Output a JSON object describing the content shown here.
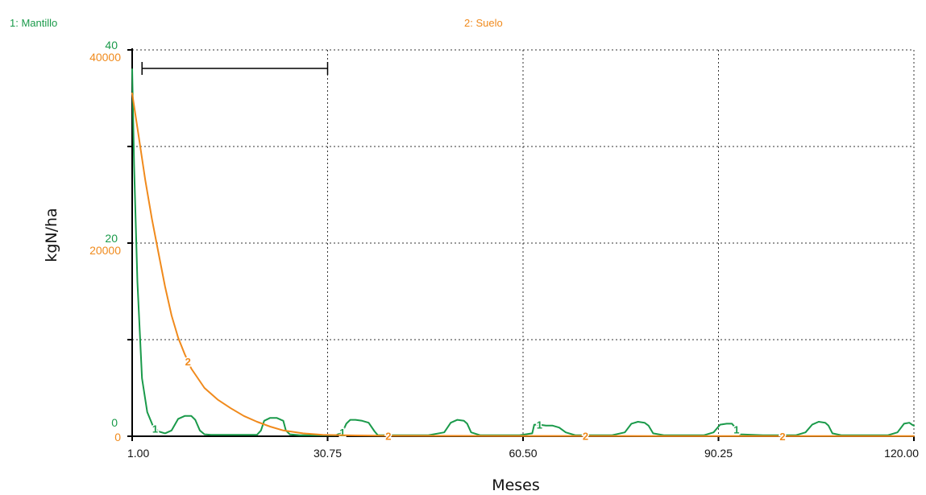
{
  "chart_data": {
    "type": "line",
    "title": "",
    "xlabel": "Meses",
    "ylabel": "kgN/ha",
    "xlim": [
      1.0,
      120.0
    ],
    "x_ticks": [
      "1.00",
      "30.75",
      "60.50",
      "90.25",
      "120.00"
    ],
    "grid": true,
    "legend": "top",
    "axes": {
      "left_outer": {
        "series": "Mantillo",
        "color": "#1a9a4a",
        "ylim": [
          0,
          40
        ],
        "ticks": [
          {
            "value": 40,
            "label": "40"
          },
          {
            "value": 20,
            "label": "20"
          },
          {
            "value": 0,
            "label": "0"
          }
        ]
      },
      "left_inner": {
        "series": "Suelo",
        "color": "#f08a1c",
        "ylim": [
          0,
          40000
        ],
        "ticks": [
          {
            "value": 40000,
            "label": "40000"
          },
          {
            "value": 20000,
            "label": "20000"
          },
          {
            "value": 0,
            "label": "0"
          }
        ]
      }
    },
    "legend_entries": [
      {
        "label": "1: Mantillo",
        "color": "#1a9a4a"
      },
      {
        "label": "2: Suelo",
        "color": "#f08a1c"
      }
    ],
    "range_bar": {
      "x_start": 2.5,
      "x_end": 30.75,
      "y": 38000
    },
    "series": [
      {
        "name": "Mantillo",
        "marker": "1",
        "color": "#1a9a4a",
        "axis": "left_outer",
        "x": [
          1.0,
          1.3,
          1.8,
          2.5,
          3.3,
          4.2,
          5.0,
          6.0,
          7.0,
          8.0,
          9.0,
          10.0,
          10.6,
          11.3,
          12.0,
          13.0,
          20.0,
          20.6,
          21.1,
          22.0,
          23.0,
          24.0,
          24.4,
          25.0,
          26.5,
          27.5,
          28.0,
          29.0,
          30.0,
          31.0,
          32.0,
          33.0,
          33.6,
          34.2,
          35.0,
          36.0,
          37.0,
          37.9,
          38.4,
          39.0,
          41.0,
          46.0,
          48.5,
          49.5,
          50.5,
          51.5,
          52.0,
          52.6,
          54.0,
          60.0,
          61.9,
          62.2,
          62.6,
          63.0,
          64.0,
          65.0,
          66.0,
          67.0,
          68.5,
          74.0,
          76.0,
          77.0,
          78.0,
          79.0,
          79.6,
          80.3,
          82.0,
          88.0,
          89.5,
          90.5,
          91.5,
          92.3,
          92.8,
          93.5,
          97.0,
          102.0,
          103.5,
          104.5,
          105.5,
          106.5,
          107.0,
          107.6,
          109.0,
          116.0,
          117.5,
          118.5,
          119.3,
          119.7,
          120.0
        ],
        "y": [
          38.0,
          28.0,
          16.0,
          6.0,
          2.5,
          1.0,
          0.5,
          0.3,
          0.6,
          1.8,
          2.1,
          2.1,
          1.7,
          0.6,
          0.2,
          0.15,
          0.15,
          0.6,
          1.6,
          1.9,
          1.9,
          1.6,
          0.6,
          0.2,
          0.1,
          0.1,
          0.1,
          0.1,
          0.1,
          0.1,
          0.1,
          0.4,
          1.3,
          1.7,
          1.7,
          1.6,
          1.4,
          0.5,
          0.1,
          0.1,
          0.1,
          0.1,
          0.4,
          1.4,
          1.7,
          1.6,
          1.3,
          0.4,
          0.1,
          0.1,
          0.3,
          1.2,
          1.2,
          1.2,
          1.1,
          1.1,
          0.9,
          0.4,
          0.1,
          0.1,
          0.4,
          1.3,
          1.5,
          1.4,
          1.1,
          0.3,
          0.1,
          0.1,
          0.4,
          1.2,
          1.3,
          1.3,
          0.9,
          0.2,
          0.1,
          0.1,
          0.4,
          1.2,
          1.5,
          1.4,
          1.1,
          0.3,
          0.1,
          0.1,
          0.4,
          1.3,
          1.4,
          1.2,
          1.1
        ]
      },
      {
        "name": "Suelo",
        "marker": "2",
        "color": "#f08a1c",
        "axis": "left_inner",
        "x": [
          1.0,
          2.0,
          3.0,
          4.0,
          5.0,
          6.0,
          7.0,
          8.0,
          9.0,
          10.0,
          12.0,
          14.0,
          16.0,
          18.0,
          20.0,
          22.0,
          24.0,
          27.0,
          30.0,
          35.0,
          40.0,
          50.0,
          60.0,
          80.0,
          100.0,
          120.0
        ],
        "y": [
          35500,
          31000,
          26500,
          22500,
          19000,
          15500,
          12500,
          10200,
          8500,
          7000,
          5000,
          3800,
          2900,
          2100,
          1500,
          1000,
          600,
          300,
          150,
          80,
          50,
          40,
          30,
          25,
          20,
          20
        ]
      }
    ]
  }
}
